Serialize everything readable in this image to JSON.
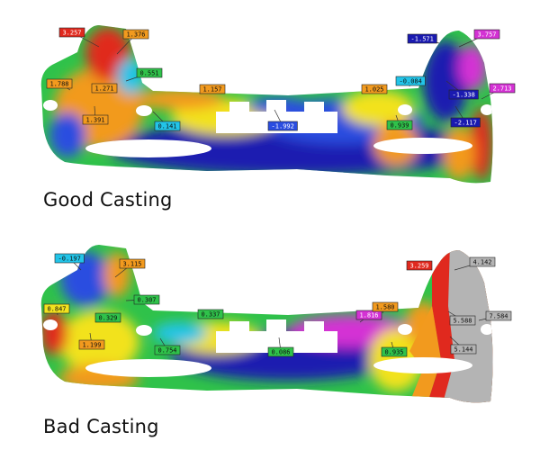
{
  "captions": {
    "good": "Good Casting",
    "bad": "Bad Casting"
  },
  "colors": {
    "deep_blue": "#1a1ab0",
    "blue": "#2a4de0",
    "cyan": "#22c4e8",
    "green": "#2fc24a",
    "yellow": "#f2e21e",
    "orange": "#f29a1e",
    "red": "#e0291e",
    "magenta": "#d431d4",
    "gray": "#b4b4b4"
  },
  "good_labels": [
    {
      "text": "3.257",
      "color": "#e0291e"
    },
    {
      "text": "1.376",
      "color": "#f29a1e"
    },
    {
      "text": "0.551",
      "color": "#2fc24a"
    },
    {
      "text": "1.788",
      "color": "#f29a1e"
    },
    {
      "text": "1.271",
      "color": "#f29a1e"
    },
    {
      "text": "1.391",
      "color": "#f29a1e"
    },
    {
      "text": "0.141",
      "color": "#22c4e8"
    },
    {
      "text": "1.157",
      "color": "#f29a1e"
    },
    {
      "text": "-1.992",
      "color": "#2a4de0"
    },
    {
      "text": "1.025",
      "color": "#f29a1e"
    },
    {
      "text": "0.939",
      "color": "#2fc24a"
    },
    {
      "text": "-0.084",
      "color": "#22c4e8"
    },
    {
      "text": "-1.571",
      "color": "#1a1ab0"
    },
    {
      "text": "3.757",
      "color": "#d431d4"
    },
    {
      "text": "-1.338",
      "color": "#1a1ab0"
    },
    {
      "text": "2.713",
      "color": "#d431d4"
    },
    {
      "text": "-2.117",
      "color": "#1a1ab0"
    }
  ],
  "bad_labels": [
    {
      "text": "-0.197",
      "color": "#22c4e8"
    },
    {
      "text": "3.115",
      "color": "#f29a1e"
    },
    {
      "text": "0.307",
      "color": "#2fc24a"
    },
    {
      "text": "0.847",
      "color": "#f2e21e"
    },
    {
      "text": "0.329",
      "color": "#2fc24a"
    },
    {
      "text": "1.199",
      "color": "#f29a1e"
    },
    {
      "text": "0.754",
      "color": "#2fc24a"
    },
    {
      "text": "0.337",
      "color": "#2fc24a"
    },
    {
      "text": "0.086",
      "color": "#2fc24a"
    },
    {
      "text": "1.816",
      "color": "#d431d4"
    },
    {
      "text": "1.580",
      "color": "#f29a1e"
    },
    {
      "text": "0.935",
      "color": "#2fc24a"
    },
    {
      "text": "3.259",
      "color": "#e0291e"
    },
    {
      "text": "4.142",
      "color": "#b4b4b4"
    },
    {
      "text": "5.588",
      "color": "#b4b4b4"
    },
    {
      "text": "7.584",
      "color": "#b4b4b4"
    },
    {
      "text": "5.144",
      "color": "#b4b4b4"
    }
  ]
}
